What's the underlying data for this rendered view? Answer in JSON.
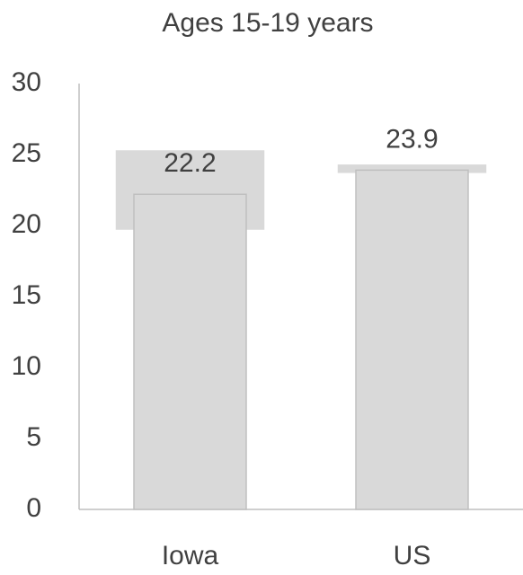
{
  "chart_data": {
    "type": "bar",
    "title": "Ages 15-19 years",
    "categories": [
      "Iowa",
      "US"
    ],
    "values": [
      22.2,
      23.9
    ],
    "lower": [
      19.7,
      23.7
    ],
    "upper": [
      25.3,
      24.3
    ],
    "color": "#d9d9d9",
    "interval_color": "#d9d9d9",
    "ylim": [
      0,
      30
    ],
    "yticks": [
      0,
      5,
      10,
      15,
      20,
      25,
      30
    ],
    "grid": false
  }
}
